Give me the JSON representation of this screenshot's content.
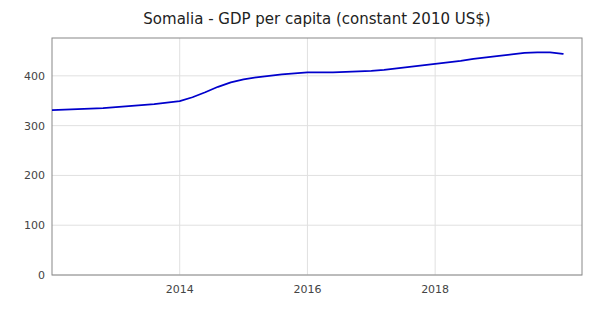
{
  "chart_data": {
    "type": "line",
    "title": "Somalia - GDP per capita (constant 2010 US$)",
    "x": [
      2012.0,
      2012.2,
      2012.4,
      2012.6,
      2012.8,
      2013.0,
      2013.2,
      2013.4,
      2013.6,
      2013.8,
      2014.0,
      2014.2,
      2014.4,
      2014.6,
      2014.8,
      2015.0,
      2015.2,
      2015.4,
      2015.6,
      2015.8,
      2016.0,
      2016.2,
      2016.4,
      2016.6,
      2016.8,
      2017.0,
      2017.2,
      2017.4,
      2017.6,
      2017.8,
      2018.0,
      2018.2,
      2018.4,
      2018.6,
      2018.8,
      2019.0,
      2019.2,
      2019.4,
      2019.6,
      2019.8,
      2020.0
    ],
    "values": [
      331,
      332,
      333,
      334,
      335,
      337,
      339,
      341,
      343,
      346,
      349,
      357,
      367,
      378,
      387,
      393,
      397,
      400,
      403,
      405,
      407,
      407,
      407,
      408,
      409,
      410,
      412,
      415,
      418,
      421,
      424,
      427,
      430,
      434,
      437,
      440,
      443,
      446,
      447,
      447,
      444
    ],
    "color": "#0000CC",
    "xlim": [
      2012.0,
      2020.3
    ],
    "ylim": [
      0,
      476
    ],
    "xticks": [
      2014,
      2016,
      2018
    ],
    "yticks": [
      0,
      100,
      200,
      300,
      400
    ],
    "grid": true
  }
}
